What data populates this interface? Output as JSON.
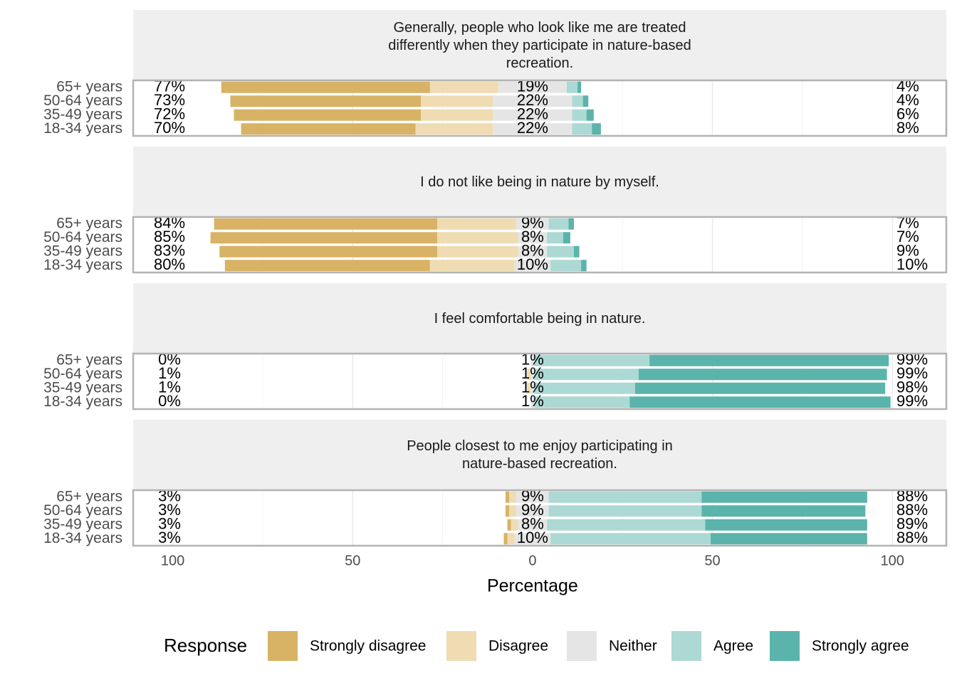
{
  "chart_data": [
    {
      "type": "bar",
      "title": "Generally, people who look like me are treated\ndifferently when they participate in nature-based\nrecreation.",
      "categories": [
        "65+ years",
        "50-64 years",
        "35-49 years",
        "18-34 years"
      ],
      "series": [
        {
          "name": "Strongly disagree",
          "color": "#d8b365",
          "values": [
            58,
            53,
            52,
            48.5
          ]
        },
        {
          "name": "Disagree",
          "color": "#efdcb2",
          "values": [
            19,
            20,
            20,
            21.5
          ]
        },
        {
          "name": "Neither",
          "color": "#e5e5e5",
          "values": [
            19,
            22,
            22,
            22
          ]
        },
        {
          "name": "Agree",
          "color": "#acd9d4",
          "values": [
            3,
            3,
            4,
            5.5
          ]
        },
        {
          "name": "Strongly agree",
          "color": "#5ab4ac",
          "values": [
            1,
            1.5,
            2,
            2.5
          ]
        }
      ],
      "low_labels": [
        "77%",
        "73%",
        "72%",
        "70%"
      ],
      "neutral_labels": [
        "19%",
        "22%",
        "22%",
        "22%"
      ],
      "high_labels": [
        "4%",
        "4%",
        "6%",
        "8%"
      ],
      "xlim": [
        -111,
        115
      ],
      "xticks": [
        {
          "value": -100,
          "label": "100"
        },
        {
          "value": -50,
          "label": "50"
        },
        0,
        50,
        100
      ]
    },
    {
      "type": "bar",
      "title": "I do not like being in nature by myself.",
      "categories": [
        "65+ years",
        "50-64 years",
        "35-49 years",
        "18-34 years"
      ],
      "series": [
        {
          "name": "Strongly disagree",
          "color": "#d8b365",
          "values": [
            62,
            63,
            60.5,
            57
          ]
        },
        {
          "name": "Disagree",
          "color": "#efdcb2",
          "values": [
            22,
            22.5,
            22.5,
            23.5
          ]
        },
        {
          "name": "Neither",
          "color": "#e5e5e5",
          "values": [
            9,
            8,
            8,
            10
          ]
        },
        {
          "name": "Agree",
          "color": "#acd9d4",
          "values": [
            5.5,
            4.5,
            7.5,
            8.5
          ]
        },
        {
          "name": "Strongly agree",
          "color": "#5ab4ac",
          "values": [
            1.5,
            2,
            1.5,
            1.5
          ]
        }
      ],
      "low_labels": [
        "84%",
        "85%",
        "83%",
        "80%"
      ],
      "neutral_labels": [
        "9%",
        "8%",
        "8%",
        "10%"
      ],
      "high_labels": [
        "7%",
        "7%",
        "9%",
        "10%"
      ],
      "xlim": [
        -111,
        115
      ],
      "xticks": [
        {
          "value": -100,
          "label": "100"
        },
        {
          "value": -50,
          "label": "50"
        },
        0,
        50,
        100
      ]
    },
    {
      "type": "bar",
      "title": "I feel comfortable being in nature.",
      "categories": [
        "65+ years",
        "50-64 years",
        "35-49 years",
        "18-34 years"
      ],
      "series": [
        {
          "name": "Strongly disagree",
          "color": "#d8b365",
          "values": [
            0,
            0,
            0,
            0
          ]
        },
        {
          "name": "Disagree",
          "color": "#efdcb2",
          "values": [
            0,
            1,
            1,
            0
          ]
        },
        {
          "name": "Neither",
          "color": "#e5e5e5",
          "values": [
            1,
            1,
            1,
            1
          ]
        },
        {
          "name": "Agree",
          "color": "#acd9d4",
          "values": [
            32,
            29,
            28,
            26.5
          ]
        },
        {
          "name": "Strongly agree",
          "color": "#5ab4ac",
          "values": [
            66.5,
            69,
            69.5,
            72.5
          ]
        }
      ],
      "low_labels": [
        "0%",
        "1%",
        "1%",
        "0%"
      ],
      "neutral_labels": [
        "1%",
        "1%",
        "1%",
        "1%"
      ],
      "high_labels": [
        "99%",
        "99%",
        "98%",
        "99%"
      ],
      "xlim": [
        -111,
        115
      ],
      "xticks": [
        {
          "value": -100,
          "label": "100"
        },
        {
          "value": -50,
          "label": "50"
        },
        0,
        50,
        100
      ]
    },
    {
      "type": "bar",
      "title": "People closest to me enjoy participating in\nnature-based recreation.",
      "categories": [
        "65+ years",
        "50-64 years",
        "35-49 years",
        "18-34 years"
      ],
      "series": [
        {
          "name": "Strongly disagree",
          "color": "#d8b365",
          "values": [
            1,
            1,
            1,
            1
          ]
        },
        {
          "name": "Disagree",
          "color": "#efdcb2",
          "values": [
            2,
            2,
            2,
            2
          ]
        },
        {
          "name": "Neither",
          "color": "#e5e5e5",
          "values": [
            9,
            9,
            8,
            10
          ]
        },
        {
          "name": "Agree",
          "color": "#acd9d4",
          "values": [
            42.5,
            42.5,
            44,
            44.5
          ]
        },
        {
          "name": "Strongly agree",
          "color": "#5ab4ac",
          "values": [
            46,
            45.5,
            45,
            43.5
          ]
        }
      ],
      "low_labels": [
        "3%",
        "3%",
        "3%",
        "3%"
      ],
      "neutral_labels": [
        "9%",
        "9%",
        "8%",
        "10%"
      ],
      "high_labels": [
        "88%",
        "88%",
        "89%",
        "88%"
      ],
      "xlim": [
        -111,
        115
      ],
      "xticks": [
        {
          "value": -100,
          "label": "100"
        },
        {
          "value": -50,
          "label": "50"
        },
        0,
        50,
        100
      ],
      "x_label": "Percentage",
      "legend_title": "Response"
    }
  ]
}
